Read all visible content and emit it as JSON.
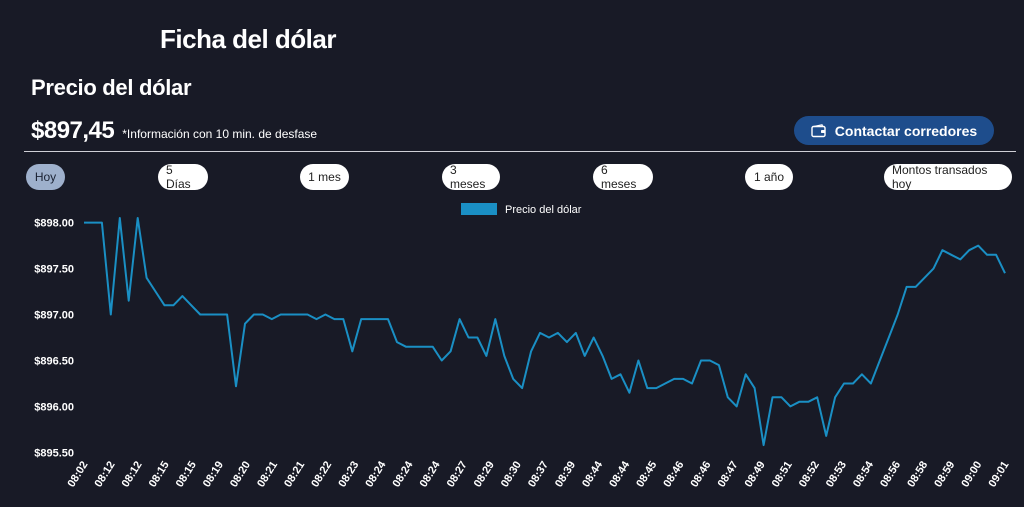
{
  "header": {
    "page_title": "Ficha del dólar",
    "section_title": "Precio del dólar",
    "price": "$897,45",
    "price_note": "*Información con 10 min. de desfase",
    "contact_label": "Contactar corredores"
  },
  "ranges": [
    {
      "label": "Hoy",
      "active": true
    },
    {
      "label": "5 Días",
      "active": false
    },
    {
      "label": "1 mes",
      "active": false
    },
    {
      "label": "3 meses",
      "active": false
    },
    {
      "label": "6 meses",
      "active": false
    },
    {
      "label": "1 año",
      "active": false
    },
    {
      "label": "Montos transados hoy",
      "active": false
    }
  ],
  "colors": {
    "background": "#181a26",
    "line": "#1a8fc4",
    "button_active": "#9eb0cc",
    "contact_button": "#1e4d8c"
  },
  "chart_data": {
    "type": "line",
    "legend": "Precio del dólar",
    "legend_position": "top-center",
    "grid": false,
    "ylim": [
      895.45,
      898.05
    ],
    "yticks": [
      "$898.00",
      "$897.50",
      "$897.00",
      "$896.50",
      "$896.00",
      "$895.50"
    ],
    "ytick_values": [
      898.0,
      897.5,
      897.0,
      896.5,
      896.0,
      895.5
    ],
    "xticks": [
      "08:02",
      "08:12",
      "08:12",
      "08:15",
      "08:15",
      "08:19",
      "08:20",
      "08:21",
      "08:21",
      "08:22",
      "08:23",
      "08:24",
      "08:24",
      "08:24",
      "08:27",
      "08:29",
      "08:30",
      "08:37",
      "08:39",
      "08:44",
      "08:44",
      "08:45",
      "08:46",
      "08:46",
      "08:47",
      "08:49",
      "08:51",
      "08:52",
      "08:53",
      "08:54",
      "08:56",
      "08:58",
      "08:59",
      "09:00",
      "09:01"
    ],
    "series": [
      {
        "name": "Precio del dólar",
        "values": [
          898.0,
          898.0,
          898.0,
          897.0,
          898.05,
          897.15,
          898.05,
          897.4,
          897.25,
          897.1,
          897.1,
          897.2,
          897.1,
          897.0,
          897.0,
          897.0,
          897.0,
          896.22,
          896.9,
          897.0,
          897.0,
          896.95,
          897.0,
          897.0,
          897.0,
          897.0,
          896.95,
          897.0,
          896.95,
          896.95,
          896.6,
          896.95,
          896.95,
          896.95,
          896.95,
          896.7,
          896.65,
          896.65,
          896.65,
          896.65,
          896.5,
          896.6,
          896.95,
          896.75,
          896.75,
          896.55,
          896.95,
          896.55,
          896.3,
          896.2,
          896.6,
          896.8,
          896.75,
          896.8,
          896.7,
          896.8,
          896.55,
          896.75,
          896.55,
          896.3,
          896.35,
          896.15,
          896.5,
          896.2,
          896.2,
          896.25,
          896.3,
          896.3,
          896.25,
          896.5,
          896.5,
          896.45,
          896.1,
          896.0,
          896.35,
          896.2,
          895.58,
          896.1,
          896.1,
          896.0,
          896.05,
          896.05,
          896.1,
          895.68,
          896.1,
          896.25,
          896.25,
          896.35,
          896.25,
          896.5,
          896.75,
          897.0,
          897.3,
          897.3,
          897.4,
          897.5,
          897.7,
          897.65,
          897.6,
          897.7,
          897.75,
          897.65,
          897.65,
          897.45
        ]
      }
    ]
  }
}
